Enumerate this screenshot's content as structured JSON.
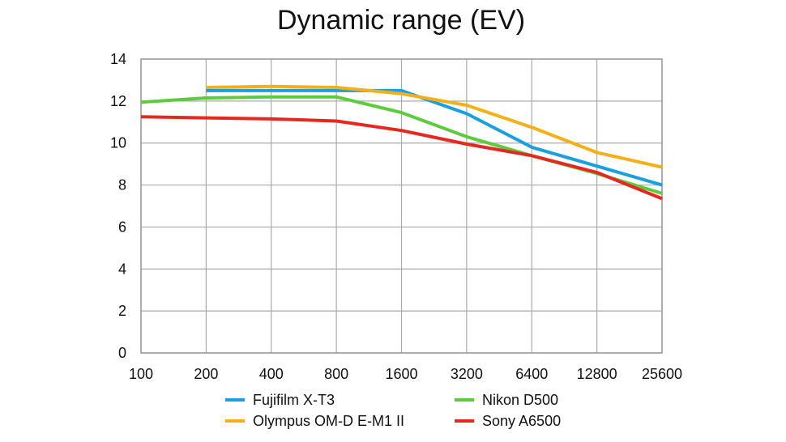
{
  "chart_data": {
    "type": "line",
    "title": "Dynamic range (EV)",
    "xlabel": "",
    "ylabel": "",
    "categories": [
      "100",
      "200",
      "400",
      "800",
      "1600",
      "3200",
      "6400",
      "12800",
      "25600"
    ],
    "yticks": [
      "0",
      "2",
      "4",
      "6",
      "8",
      "10",
      "12",
      "14"
    ],
    "ylim": [
      0,
      14
    ],
    "grid": true,
    "legend_position": "bottom",
    "series": [
      {
        "name": "Fujifilm X-T3",
        "color": "#1a9fe0",
        "values": [
          null,
          12.5,
          12.5,
          12.5,
          12.5,
          11.4,
          9.8,
          8.9,
          8.0
        ]
      },
      {
        "name": "Olympus OM-D E-M1 II",
        "color": "#f5b019",
        "values": [
          null,
          12.65,
          12.7,
          12.65,
          12.35,
          11.8,
          10.75,
          9.55,
          8.85
        ]
      },
      {
        "name": "Nikon D500",
        "color": "#5ecb3e",
        "values": [
          11.95,
          12.15,
          12.2,
          12.2,
          11.45,
          10.3,
          9.4,
          8.55,
          7.6
        ]
      },
      {
        "name": "Sony A6500",
        "color": "#e52820",
        "values": [
          11.25,
          11.2,
          11.15,
          11.05,
          10.6,
          9.95,
          9.4,
          8.6,
          7.35
        ]
      }
    ]
  }
}
